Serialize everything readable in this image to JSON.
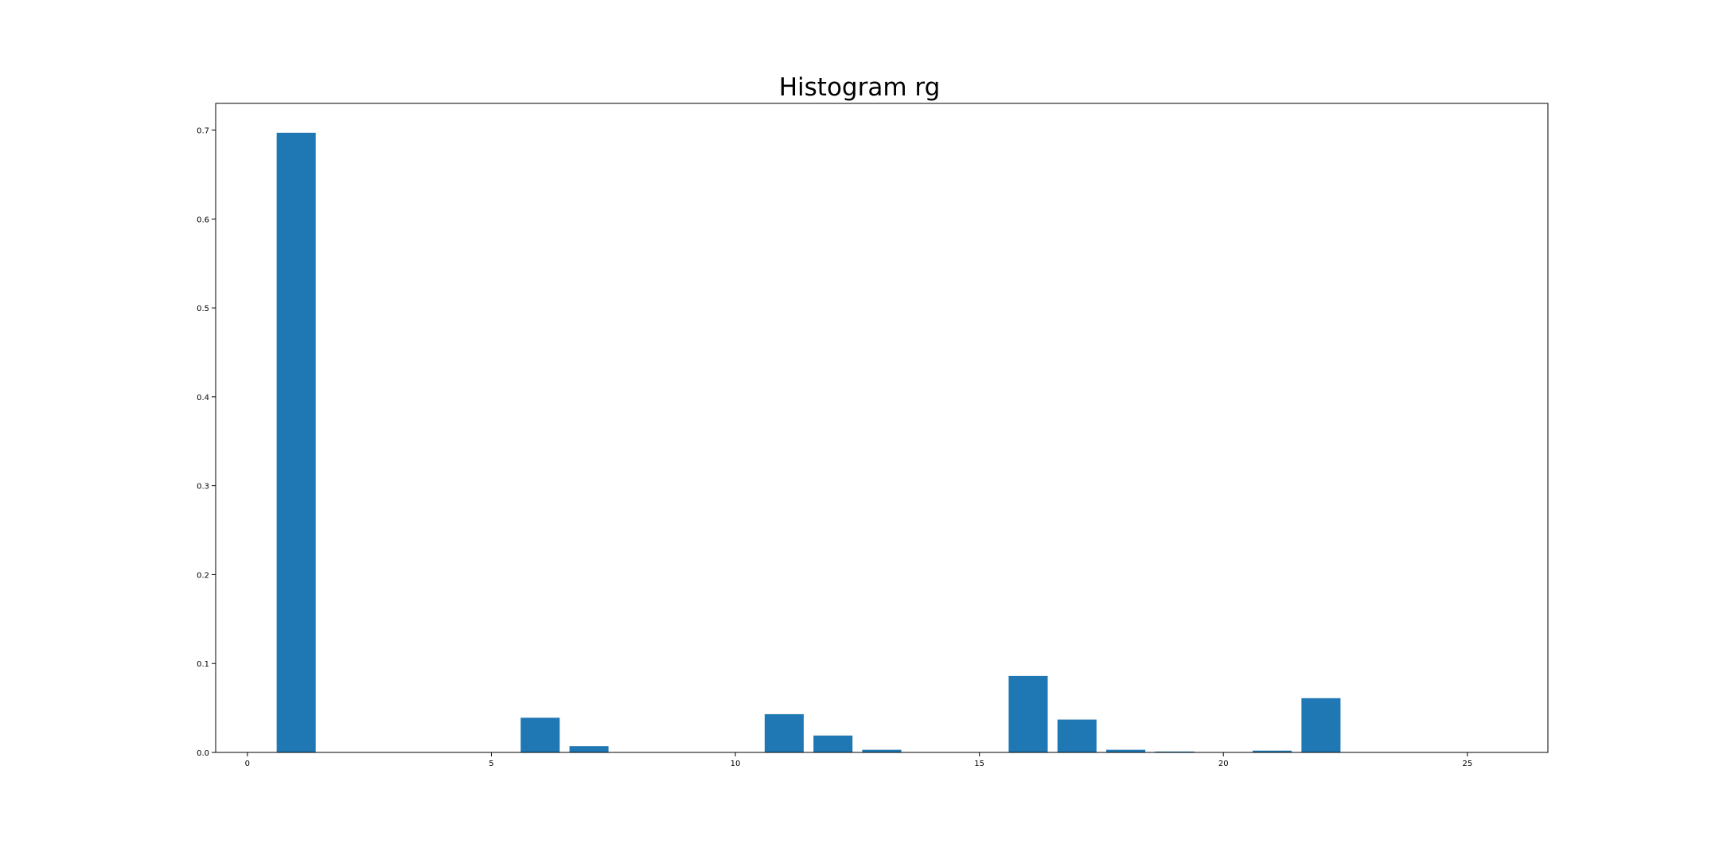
{
  "chart_data": {
    "type": "bar",
    "title": "Histogram rg",
    "xlabel": "",
    "ylabel": "",
    "x": [
      0,
      1,
      2,
      3,
      4,
      5,
      6,
      7,
      8,
      9,
      10,
      11,
      12,
      13,
      14,
      15,
      16,
      17,
      18,
      19,
      20,
      21,
      22,
      23,
      24,
      25,
      26
    ],
    "values": [
      0,
      0.697,
      0,
      0,
      0,
      0,
      0.039,
      0.007,
      0,
      0,
      0,
      0.043,
      0.019,
      0.003,
      0,
      0,
      0.086,
      0.037,
      0.003,
      0.001,
      0,
      0.002,
      0.061,
      0,
      0,
      0,
      0
    ],
    "bar_width": 0.8,
    "color": "#1f77b4",
    "xlim": [
      -0.65,
      26.65
    ],
    "ylim": [
      0,
      0.73
    ],
    "xticks": [
      0,
      5,
      10,
      15,
      20,
      25
    ],
    "xtick_labels": [
      "0",
      "5",
      "10",
      "15",
      "20",
      "25"
    ],
    "yticks": [
      0.0,
      0.1,
      0.2,
      0.3,
      0.4,
      0.5,
      0.6,
      0.7
    ],
    "ytick_labels": [
      "0.0",
      "0.1",
      "0.2",
      "0.3",
      "0.4",
      "0.5",
      "0.6",
      "0.7"
    ],
    "grid": false,
    "legend": "none"
  }
}
